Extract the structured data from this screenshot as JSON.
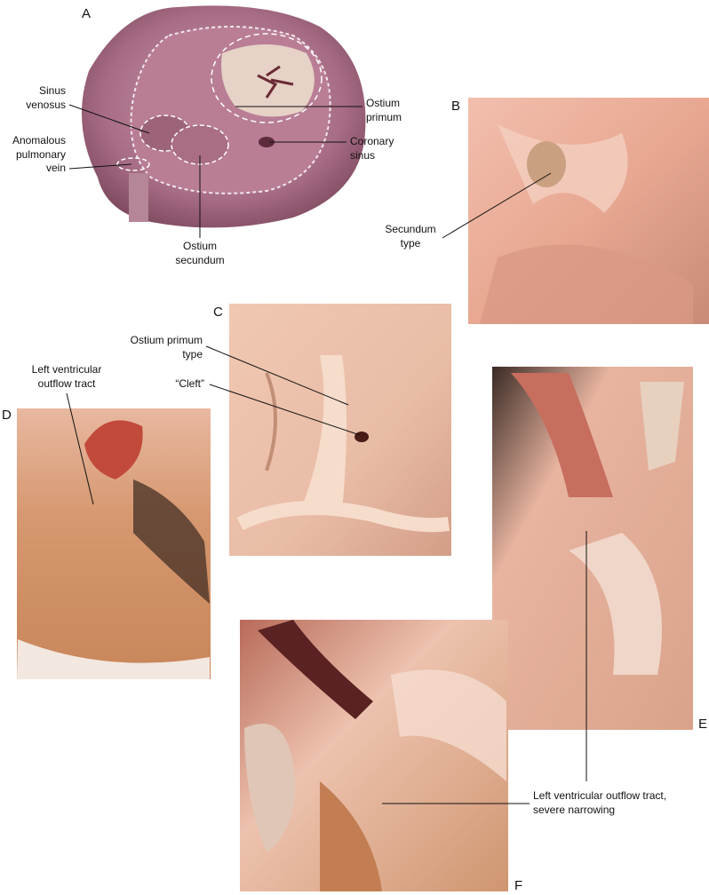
{
  "panels": [
    {
      "letter": "A",
      "labels": [
        {
          "lines": [
            "Sinus",
            "venosus"
          ]
        },
        {
          "lines": [
            "Anomalous",
            "pulmonary",
            "vein"
          ]
        },
        {
          "lines": [
            "Ostium",
            "primum"
          ]
        },
        {
          "lines": [
            "Coronary",
            "sinus"
          ]
        },
        {
          "lines": [
            "Ostium",
            "secundum"
          ]
        }
      ]
    },
    {
      "letter": "B",
      "labels": [
        {
          "lines": [
            "Secundum",
            "type"
          ]
        }
      ]
    },
    {
      "letter": "C",
      "labels": [
        {
          "lines": [
            "Ostium primum",
            "type"
          ]
        },
        {
          "lines": [
            "“Cleft”"
          ]
        }
      ]
    },
    {
      "letter": "D",
      "labels": [
        {
          "lines": [
            "Left ventricular",
            "outflow tract"
          ]
        }
      ]
    },
    {
      "letter": "E"
    },
    {
      "letter": "F",
      "labels": [
        {
          "lines": [
            "Left ventricular outflow tract,",
            "severe narrowing"
          ]
        }
      ]
    }
  ]
}
